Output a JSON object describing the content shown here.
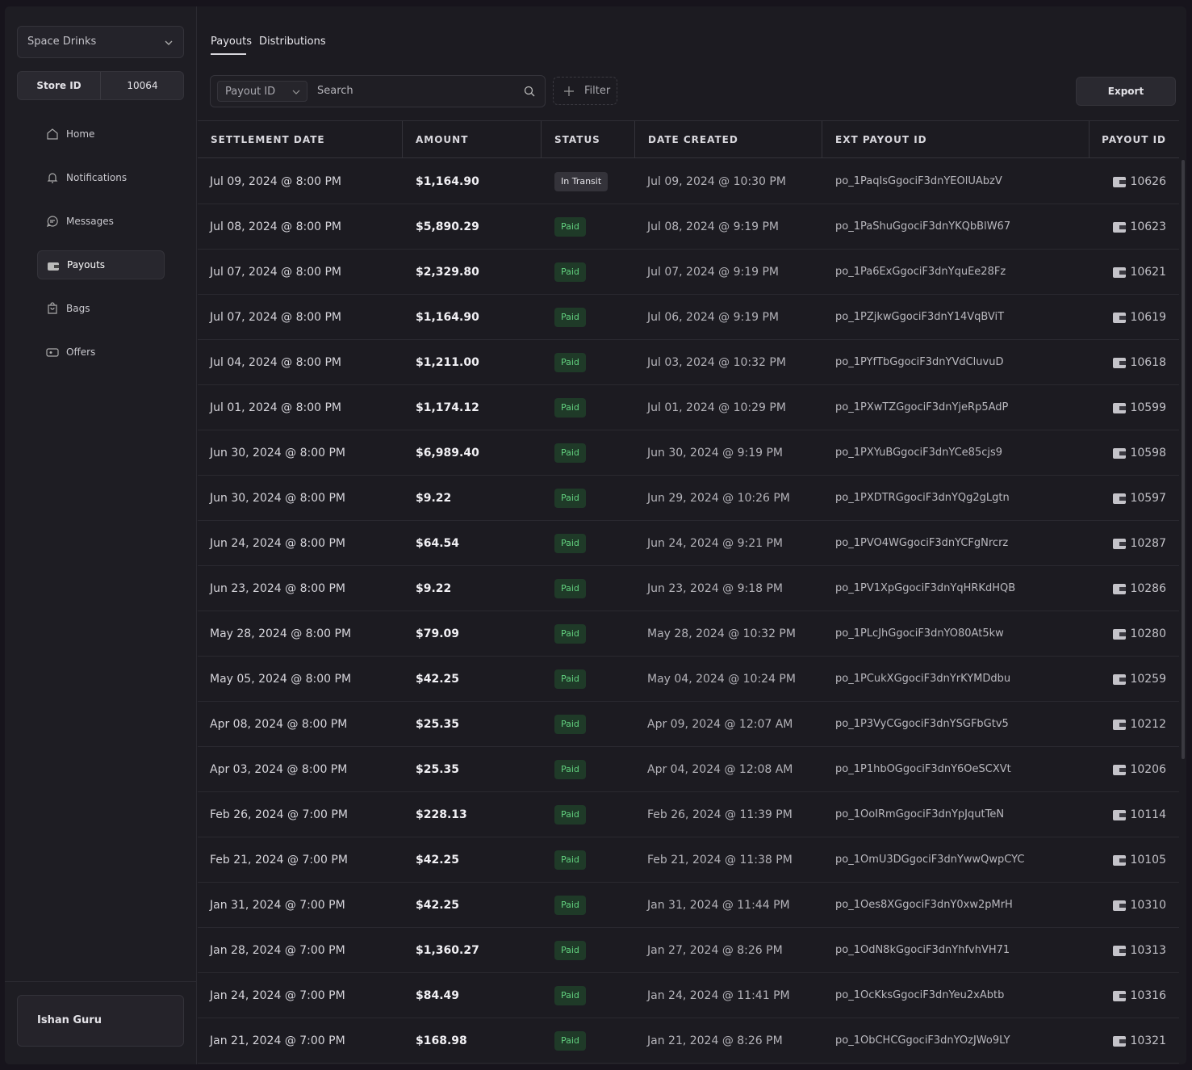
{
  "sidebar": {
    "store_selector": "Space Drinks",
    "store_id_label": "Store ID",
    "store_id": "10064",
    "nav": [
      "Home",
      "Notifications",
      "Messages",
      "Payouts",
      "Bags",
      "Offers"
    ],
    "active": "Payouts",
    "user": "Ishan Guru"
  },
  "tabs": [
    "Payouts",
    "Distributions"
  ],
  "toolbar": {
    "field": "Payout ID",
    "search_placeholder": "Search",
    "filter": "Filter",
    "export": "Export"
  },
  "table": {
    "columns": [
      "SETTLEMENT DATE",
      "AMOUNT",
      "STATUS",
      "DATE CREATED",
      "EXT PAYOUT ID",
      "PAYOUT ID"
    ],
    "rows": [
      [
        "Jul 09, 2024 @ 8:00 PM",
        "$1,164.90",
        "In Transit",
        "Jul 09, 2024 @ 10:30 PM",
        "po_1PaqIsGgociF3dnYEOlUAbzV",
        "10626"
      ],
      [
        "Jul 08, 2024 @ 8:00 PM",
        "$5,890.29",
        "Paid",
        "Jul 08, 2024 @ 9:19 PM",
        "po_1PaShuGgociF3dnYKQbBlW67",
        "10623"
      ],
      [
        "Jul 07, 2024 @ 8:00 PM",
        "$2,329.80",
        "Paid",
        "Jul 07, 2024 @ 9:19 PM",
        "po_1Pa6ExGgociF3dnYquEe28Fz",
        "10621"
      ],
      [
        "Jul 07, 2024 @ 8:00 PM",
        "$1,164.90",
        "Paid",
        "Jul 06, 2024 @ 9:19 PM",
        "po_1PZjkwGgociF3dnY14VqBViT",
        "10619"
      ],
      [
        "Jul 04, 2024 @ 8:00 PM",
        "$1,211.00",
        "Paid",
        "Jul 03, 2024 @ 10:32 PM",
        "po_1PYfTbGgociF3dnYVdCluvuD",
        "10618"
      ],
      [
        "Jul 01, 2024 @ 8:00 PM",
        "$1,174.12",
        "Paid",
        "Jul 01, 2024 @ 10:29 PM",
        "po_1PXwTZGgociF3dnYjeRp5AdP",
        "10599"
      ],
      [
        "Jun 30, 2024 @ 8:00 PM",
        "$6,989.40",
        "Paid",
        "Jun 30, 2024 @ 9:19 PM",
        "po_1PXYuBGgociF3dnYCe85cjs9",
        "10598"
      ],
      [
        "Jun 30, 2024 @ 8:00 PM",
        "$9.22",
        "Paid",
        "Jun 29, 2024 @ 10:26 PM",
        "po_1PXDTRGgociF3dnYQg2gLgtn",
        "10597"
      ],
      [
        "Jun 24, 2024 @ 8:00 PM",
        "$64.54",
        "Paid",
        "Jun 24, 2024 @ 9:21 PM",
        "po_1PVO4WGgociF3dnYCFgNrcrz",
        "10287"
      ],
      [
        "Jun 23, 2024 @ 8:00 PM",
        "$9.22",
        "Paid",
        "Jun 23, 2024 @ 9:18 PM",
        "po_1PV1XpGgociF3dnYqHRKdHQB",
        "10286"
      ],
      [
        "May 28, 2024 @ 8:00 PM",
        "$79.09",
        "Paid",
        "May 28, 2024 @ 10:32 PM",
        "po_1PLcJhGgociF3dnYO80At5kw",
        "10280"
      ],
      [
        "May 05, 2024 @ 8:00 PM",
        "$42.25",
        "Paid",
        "May 04, 2024 @ 10:24 PM",
        "po_1PCukXGgociF3dnYrKYMDdbu",
        "10259"
      ],
      [
        "Apr 08, 2024 @ 8:00 PM",
        "$25.35",
        "Paid",
        "Apr 09, 2024 @ 12:07 AM",
        "po_1P3VyCGgociF3dnYSGFbGtv5",
        "10212"
      ],
      [
        "Apr 03, 2024 @ 8:00 PM",
        "$25.35",
        "Paid",
        "Apr 04, 2024 @ 12:08 AM",
        "po_1P1hbOGgociF3dnY6OeSCXVt",
        "10206"
      ],
      [
        "Feb 26, 2024 @ 7:00 PM",
        "$228.13",
        "Paid",
        "Feb 26, 2024 @ 11:39 PM",
        "po_1OoIRmGgociF3dnYpJqutTeN",
        "10114"
      ],
      [
        "Feb 21, 2024 @ 7:00 PM",
        "$42.25",
        "Paid",
        "Feb 21, 2024 @ 11:38 PM",
        "po_1OmU3DGgociF3dnYwwQwpCYC",
        "10105"
      ],
      [
        "Jan 31, 2024 @ 7:00 PM",
        "$42.25",
        "Paid",
        "Jan 31, 2024 @ 11:44 PM",
        "po_1Oes8XGgociF3dnY0xw2pMrH",
        "10310"
      ],
      [
        "Jan 28, 2024 @ 7:00 PM",
        "$1,360.27",
        "Paid",
        "Jan 27, 2024 @ 8:26 PM",
        "po_1OdN8kGgociF3dnYhfvhVH71",
        "10313"
      ],
      [
        "Jan 24, 2024 @ 7:00 PM",
        "$84.49",
        "Paid",
        "Jan 24, 2024 @ 11:41 PM",
        "po_1OcKksGgociF3dnYeu2xAbtb",
        "10316"
      ],
      [
        "Jan 21, 2024 @ 7:00 PM",
        "$168.98",
        "Paid",
        "Jan 21, 2024 @ 8:26 PM",
        "po_1ObCHCGgociF3dnYOzJWo9LY",
        "10321"
      ]
    ]
  }
}
